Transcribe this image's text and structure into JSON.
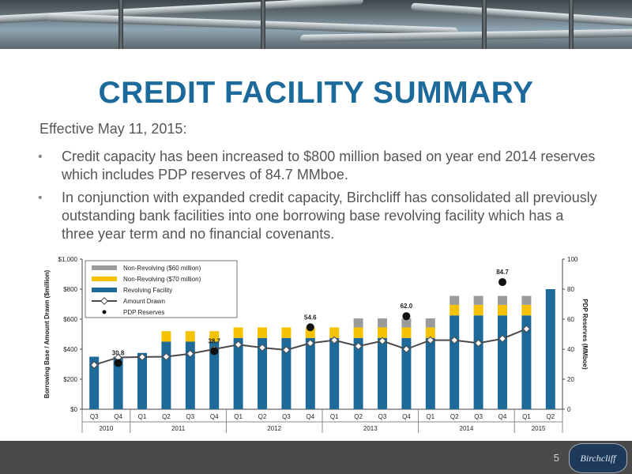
{
  "title": "CREDIT FACILITY SUMMARY",
  "intro": "Effective May 11, 2015:",
  "bullets": [
    "Credit capacity has been increased to $800 million based on year end 2014 reserves which includes PDP reserves of 84.7 MMboe.",
    "In conjunction with expanded credit capacity, Birchcliff has consolidated all previously outstanding bank facilities into one borrowing base revolving facility which has a three year term and no financial covenants."
  ],
  "page_number": "5",
  "logo_text": "Birchcliff",
  "colors": {
    "revolving": "#1d6a99",
    "nonrev70": "#f4c200",
    "nonrev60": "#9b9b9b",
    "drawn_line": "#4a4a4a",
    "title": "#1b6a9b"
  },
  "chart_data": {
    "type": "bar",
    "stacked": true,
    "quarters": [
      "Q3",
      "Q4",
      "Q1",
      "Q2",
      "Q3",
      "Q4",
      "Q1",
      "Q2",
      "Q3",
      "Q4",
      "Q1",
      "Q2",
      "Q3",
      "Q4",
      "Q1",
      "Q2",
      "Q3",
      "Q4",
      "Q1",
      "Q2"
    ],
    "years": [
      {
        "label": "2010",
        "span": 2
      },
      {
        "label": "2011",
        "span": 4
      },
      {
        "label": "2012",
        "span": 4
      },
      {
        "label": "2013",
        "span": 4
      },
      {
        "label": "2014",
        "span": 4
      },
      {
        "label": "2015",
        "span": 2
      }
    ],
    "ylabel_left": "Borrowing Base / Amount Drawn ($million)",
    "ylabel_right": "PDP Reserves (MMboe)",
    "ylim_left": [
      0,
      1000
    ],
    "yticks_left": [
      "$0",
      "$200",
      "$400",
      "$600",
      "$800",
      "$1,000"
    ],
    "ylim_right": [
      0,
      100
    ],
    "yticks_right": [
      "0",
      "20",
      "40",
      "60",
      "80",
      "100"
    ],
    "series": [
      {
        "name": "Revolving Facility",
        "axis": "left",
        "values": [
          350,
          350,
          375,
          450,
          450,
          450,
          475,
          475,
          475,
          475,
          475,
          475,
          475,
          475,
          475,
          625,
          625,
          625,
          625,
          800
        ]
      },
      {
        "name": "Non-Revolving ($70 million)",
        "axis": "left",
        "values": [
          0,
          0,
          0,
          70,
          70,
          70,
          70,
          70,
          70,
          70,
          70,
          70,
          70,
          70,
          70,
          70,
          70,
          70,
          70,
          0
        ]
      },
      {
        "name": "Non-Revolving ($60 million)",
        "axis": "left",
        "values": [
          0,
          0,
          0,
          0,
          0,
          0,
          0,
          0,
          0,
          0,
          0,
          60,
          60,
          60,
          60,
          60,
          60,
          60,
          60,
          0
        ]
      },
      {
        "name": "Amount Drawn",
        "axis": "left",
        "type": "line",
        "values": [
          295,
          345,
          348,
          350,
          370,
          400,
          430,
          410,
          395,
          440,
          460,
          420,
          455,
          400,
          460,
          460,
          440,
          470,
          535,
          null
        ]
      },
      {
        "name": "PDP Reserves",
        "axis": "right",
        "type": "scatter",
        "values": [
          null,
          30.8,
          null,
          null,
          null,
          38.7,
          null,
          null,
          null,
          54.6,
          null,
          null,
          null,
          62.0,
          null,
          null,
          null,
          84.7,
          null,
          null
        ],
        "labels": [
          null,
          "30.8",
          null,
          null,
          null,
          "38.7",
          null,
          null,
          null,
          "54.6",
          null,
          null,
          null,
          "62.0",
          null,
          null,
          null,
          "84.7",
          null,
          null
        ]
      }
    ],
    "legend_order": [
      "Non-Revolving ($60 million)",
      "Non-Revolving ($70 million)",
      "Revolving Facility",
      "Amount Drawn",
      "PDP Reserves"
    ],
    "legend_position": "top-left",
    "grid": false
  }
}
